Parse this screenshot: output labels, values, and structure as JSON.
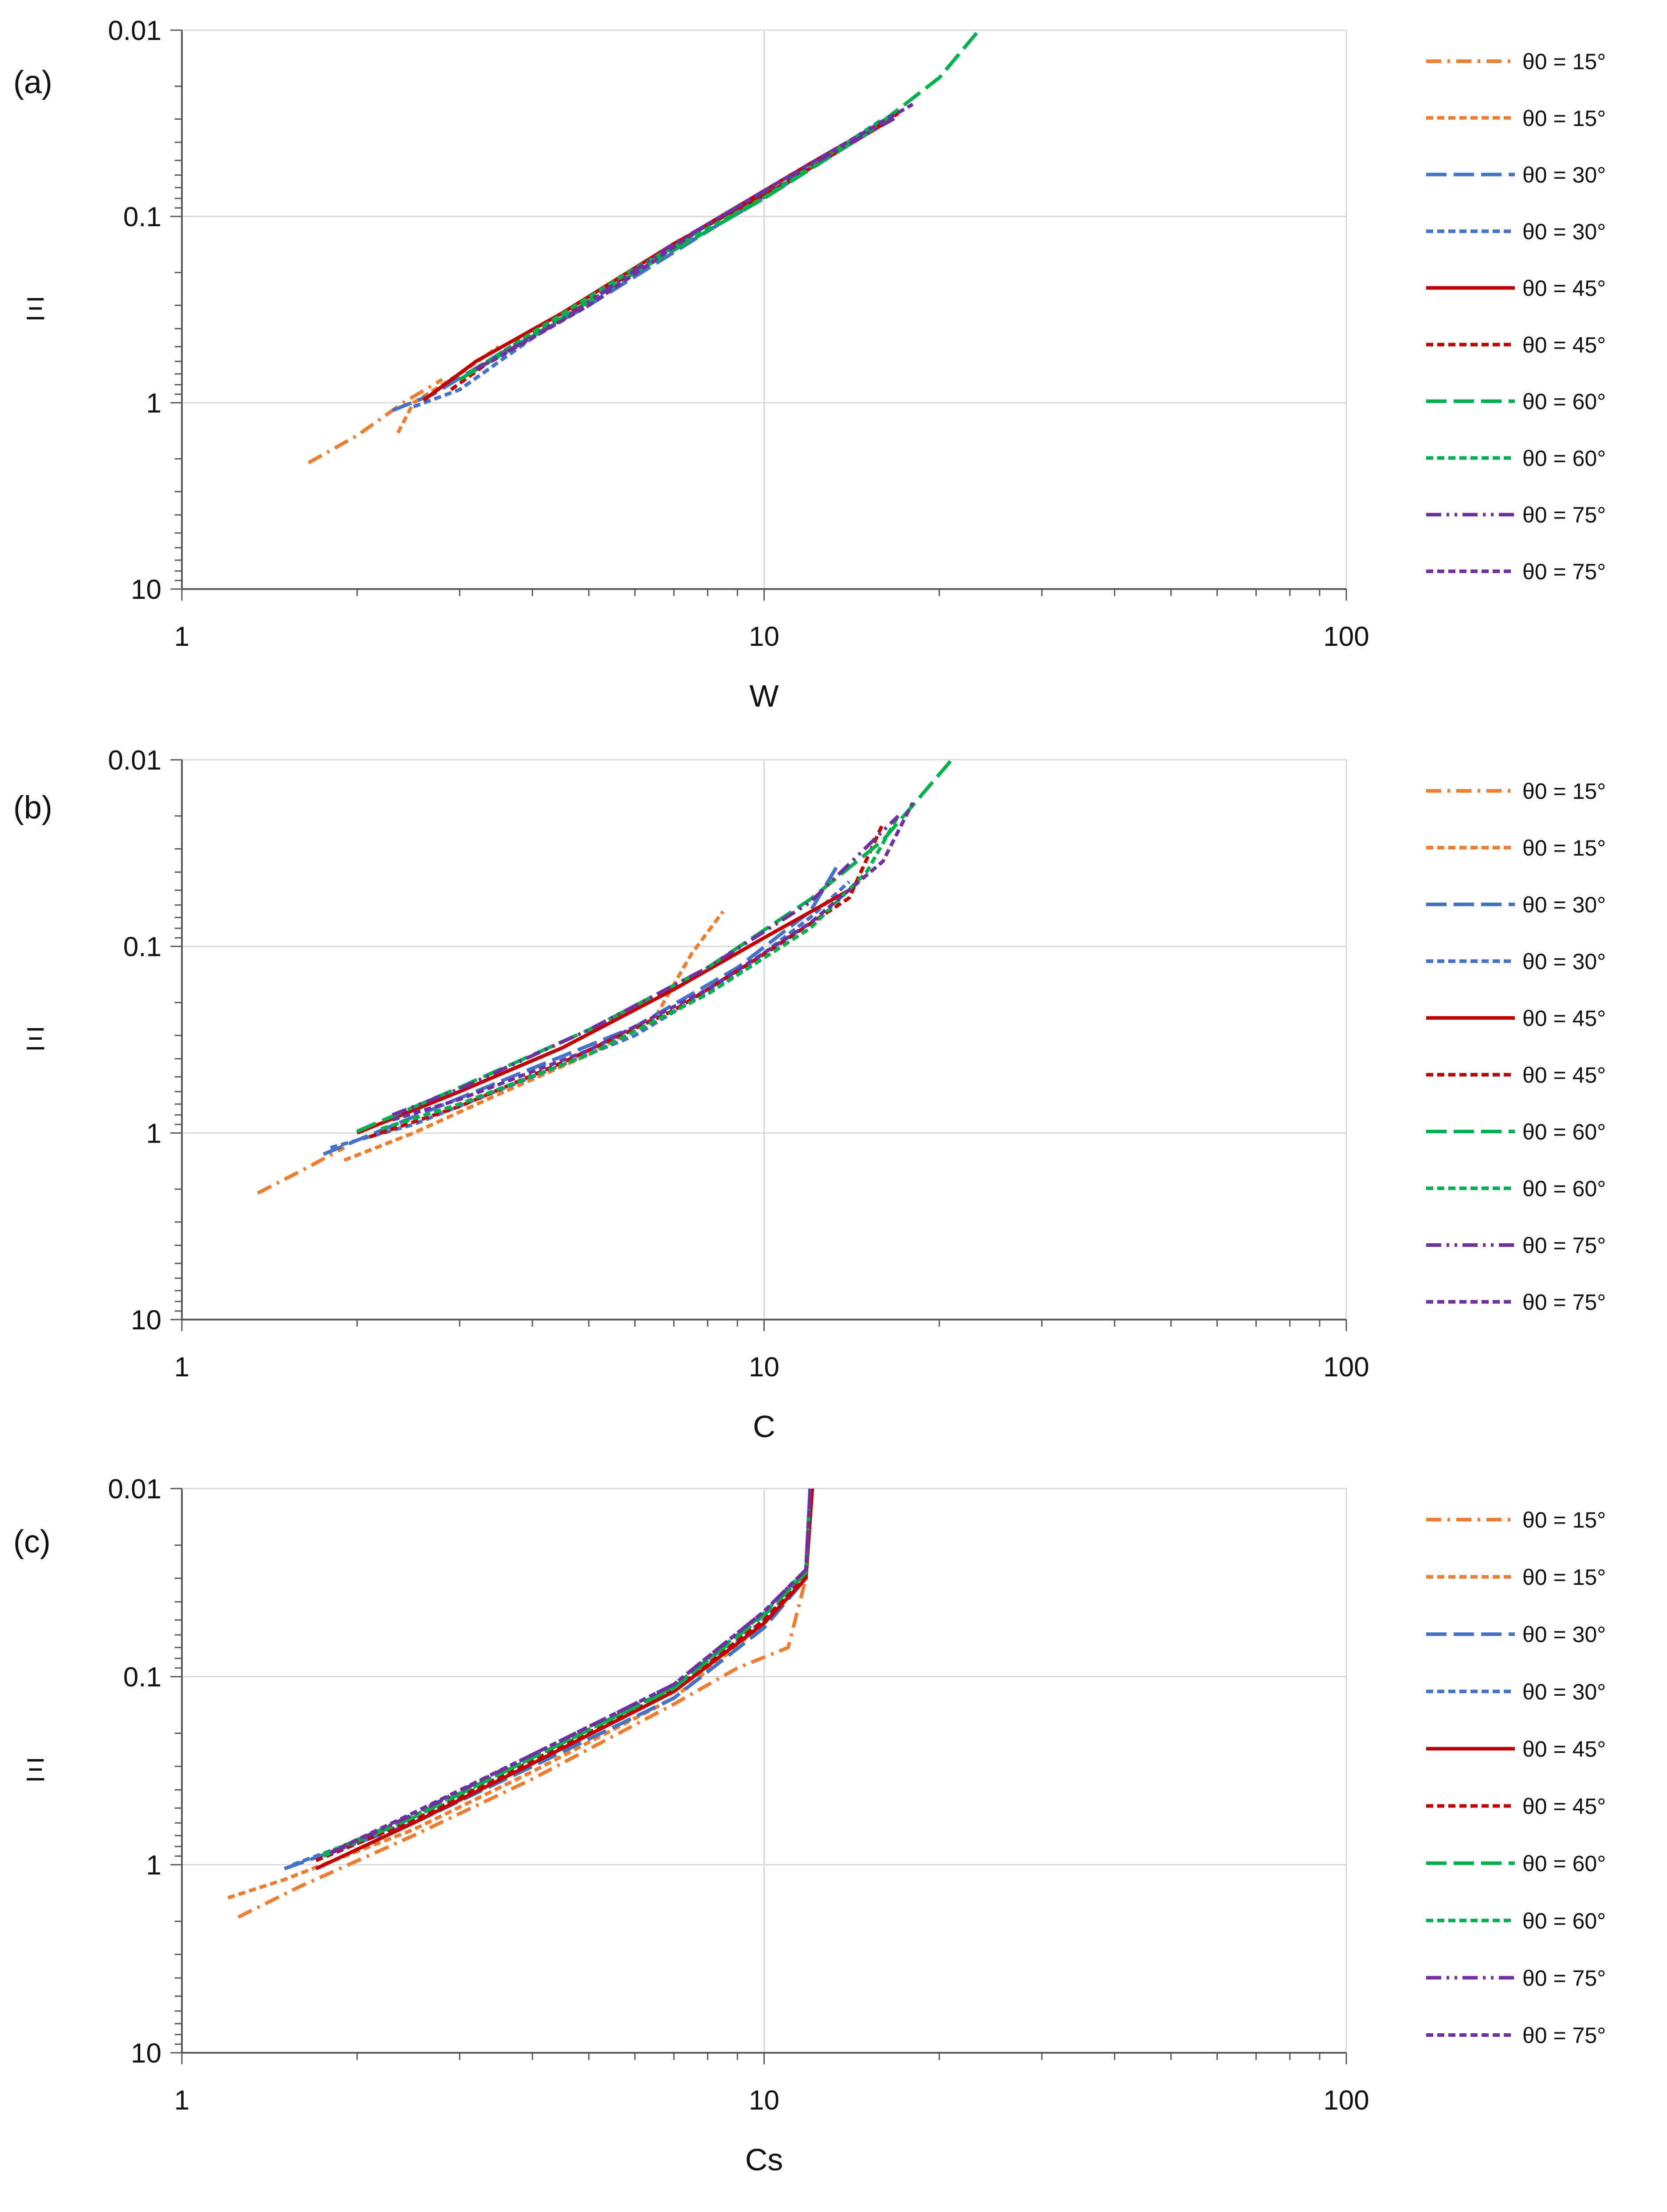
{
  "chart_data": [
    {
      "type": "line",
      "panel_label": "(a)",
      "xlabel": "W",
      "ylabel": "Ξ",
      "x_scale": "log",
      "y_scale": "log",
      "y_inverted": true,
      "xlim": [
        1,
        100
      ],
      "ylim": [
        0.01,
        10
      ],
      "x_tick_labels": [
        "1",
        "10",
        "100"
      ],
      "y_tick_labels": [
        "0.01",
        "0.1",
        "1",
        "10"
      ],
      "grid": true,
      "legend_position": "right",
      "series": [
        {
          "name": "θ0 = 15°",
          "color": "#ED7D31",
          "dash": "dashdot",
          "points": [
            [
              1.65,
              2.1
            ],
            [
              2.0,
              1.5
            ],
            [
              2.4,
              1.0
            ],
            [
              2.8,
              0.75
            ]
          ]
        },
        {
          "name": "θ0 = 15°",
          "color": "#ED7D31",
          "dash": "short",
          "points": [
            [
              2.35,
              1.45
            ],
            [
              2.5,
              1.0
            ],
            [
              3.0,
              0.7
            ],
            [
              3.5,
              0.5
            ]
          ]
        },
        {
          "name": "θ0 = 30°",
          "color": "#4472C4",
          "dash": "long",
          "points": [
            [
              2.3,
              1.1
            ],
            [
              2.7,
              0.9
            ],
            [
              3.5,
              0.55
            ],
            [
              5,
              0.3
            ],
            [
              8,
              0.12
            ],
            [
              12,
              0.055
            ],
            [
              17,
              0.027
            ]
          ]
        },
        {
          "name": "θ0 = 30°",
          "color": "#4472C4",
          "dash": "short",
          "points": [
            [
              2.5,
              1.05
            ],
            [
              3.0,
              0.85
            ],
            [
              4,
              0.45
            ],
            [
              6,
              0.2
            ],
            [
              10,
              0.08
            ],
            [
              15,
              0.035
            ]
          ]
        },
        {
          "name": "θ0 = 45°",
          "color": "#C00000",
          "dash": "solid",
          "points": [
            [
              2.6,
              0.97
            ],
            [
              3.2,
              0.6
            ],
            [
              4.5,
              0.33
            ],
            [
              7,
              0.14
            ],
            [
              11,
              0.065
            ],
            [
              16,
              0.032
            ]
          ]
        },
        {
          "name": "θ0 = 45°",
          "color": "#C00000",
          "dash": "short",
          "points": [
            [
              2.9,
              0.85
            ],
            [
              3.6,
              0.52
            ],
            [
              5,
              0.28
            ],
            [
              8,
              0.11
            ],
            [
              12,
              0.052
            ],
            [
              17,
              0.028
            ]
          ]
        },
        {
          "name": "θ0 = 60°",
          "color": "#00B050",
          "dash": "long",
          "points": [
            [
              3.0,
              0.75
            ],
            [
              4,
              0.44
            ],
            [
              6,
              0.2
            ],
            [
              10,
              0.08
            ],
            [
              15,
              0.036
            ],
            [
              20,
              0.018
            ],
            [
              23.4,
              0.01
            ]
          ]
        },
        {
          "name": "θ0 = 60°",
          "color": "#00B050",
          "dash": "short",
          "points": [
            [
              3.1,
              0.7
            ],
            [
              4,
              0.42
            ],
            [
              6,
              0.19
            ],
            [
              10,
              0.079
            ],
            [
              16,
              0.03
            ]
          ]
        },
        {
          "name": "θ0 = 75°",
          "color": "#7030A0",
          "dash": "dashdotdot",
          "points": [
            [
              3.2,
              0.66
            ],
            [
              4.5,
              0.36
            ],
            [
              7,
              0.14
            ],
            [
              11,
              0.062
            ],
            [
              17,
              0.029
            ]
          ]
        },
        {
          "name": "θ0 = 75°",
          "color": "#7030A0",
          "dash": "short",
          "points": [
            [
              3.4,
              0.6
            ],
            [
              5,
              0.3
            ],
            [
              8,
              0.11
            ],
            [
              12,
              0.052
            ],
            [
              18,
              0.025
            ]
          ]
        }
      ]
    },
    {
      "type": "line",
      "panel_label": "(b)",
      "xlabel": "C",
      "ylabel": "Ξ",
      "x_scale": "log",
      "y_scale": "log",
      "y_inverted": true,
      "xlim": [
        1,
        100
      ],
      "ylim": [
        0.01,
        10
      ],
      "x_tick_labels": [
        "1",
        "10",
        "100"
      ],
      "y_tick_labels": [
        "0.01",
        "0.1",
        "1",
        "10"
      ],
      "grid": true,
      "legend_position": "right",
      "series": [
        {
          "name": "θ0 = 15°",
          "color": "#ED7D31",
          "dash": "dashdot",
          "points": [
            [
              1.35,
              2.1
            ],
            [
              1.6,
              1.6
            ],
            [
              1.9,
              1.2
            ]
          ]
        },
        {
          "name": "θ0 = 15°",
          "color": "#ED7D31",
          "dash": "short",
          "points": [
            [
              1.9,
              1.4
            ],
            [
              2.5,
              1.0
            ],
            [
              3.5,
              0.62
            ],
            [
              5,
              0.38
            ],
            [
              6.5,
              0.24
            ],
            [
              7.5,
              0.11
            ],
            [
              8.5,
              0.065
            ]
          ]
        },
        {
          "name": "θ0 = 30°",
          "color": "#4472C4",
          "dash": "long",
          "points": [
            [
              1.75,
              1.3
            ],
            [
              2.5,
              0.82
            ],
            [
              4,
              0.45
            ],
            [
              6,
              0.27
            ],
            [
              9,
              0.13
            ],
            [
              12,
              0.065
            ],
            [
              13.5,
              0.035
            ]
          ]
        },
        {
          "name": "θ0 = 30°",
          "color": "#4472C4",
          "dash": "short",
          "points": [
            [
              1.8,
              1.2
            ],
            [
              2.5,
              0.9
            ],
            [
              4,
              0.5
            ],
            [
              6,
              0.3
            ],
            [
              9,
              0.14
            ],
            [
              12,
              0.07
            ],
            [
              14,
              0.045
            ]
          ]
        },
        {
          "name": "θ0 = 45°",
          "color": "#C00000",
          "dash": "solid",
          "points": [
            [
              2.0,
              1.0
            ],
            [
              3,
              0.6
            ],
            [
              4.5,
              0.35
            ],
            [
              7,
              0.17
            ],
            [
              10,
              0.09
            ],
            [
              14,
              0.05
            ]
          ]
        },
        {
          "name": "θ0 = 45°",
          "color": "#C00000",
          "dash": "short",
          "points": [
            [
              2.1,
              1.05
            ],
            [
              3,
              0.72
            ],
            [
              4.5,
              0.42
            ],
            [
              7,
              0.22
            ],
            [
              10,
              0.11
            ],
            [
              14,
              0.055
            ],
            [
              16,
              0.022
            ]
          ]
        },
        {
          "name": "θ0 = 60°",
          "color": "#00B050",
          "dash": "long",
          "points": [
            [
              2.0,
              0.98
            ],
            [
              3,
              0.57
            ],
            [
              5,
              0.28
            ],
            [
              8,
              0.13
            ],
            [
              12,
              0.056
            ],
            [
              16,
              0.027
            ],
            [
              21,
              0.01
            ]
          ]
        },
        {
          "name": "θ0 = 60°",
          "color": "#00B050",
          "dash": "short",
          "points": [
            [
              2.2,
              0.95
            ],
            [
              3,
              0.7
            ],
            [
              5,
              0.38
            ],
            [
              8,
              0.18
            ],
            [
              12,
              0.08
            ],
            [
              15,
              0.04
            ],
            [
              17,
              0.02
            ]
          ]
        },
        {
          "name": "θ0 = 75°",
          "color": "#7030A0",
          "dash": "dashdotdot",
          "points": [
            [
              2.3,
              0.8
            ],
            [
              3,
              0.58
            ],
            [
              5,
              0.28
            ],
            [
              8,
              0.13
            ],
            [
              12,
              0.058
            ],
            [
              17,
              0.02
            ]
          ]
        },
        {
          "name": "θ0 = 75°",
          "color": "#7030A0",
          "dash": "short",
          "points": [
            [
              2.3,
              0.85
            ],
            [
              3,
              0.66
            ],
            [
              5,
              0.36
            ],
            [
              8,
              0.17
            ],
            [
              12,
              0.075
            ],
            [
              16,
              0.035
            ],
            [
              18,
              0.017
            ]
          ]
        }
      ]
    },
    {
      "type": "line",
      "panel_label": "(c)",
      "xlabel": "Cs",
      "ylabel": "Ξ",
      "x_scale": "log",
      "y_scale": "log",
      "y_inverted": true,
      "xlim": [
        1,
        100
      ],
      "ylim": [
        0.01,
        10
      ],
      "x_tick_labels": [
        "1",
        "10",
        "100"
      ],
      "y_tick_labels": [
        "0.01",
        "0.1",
        "1",
        "10"
      ],
      "grid": true,
      "legend_position": "right",
      "series": [
        {
          "name": "θ0 = 15°",
          "color": "#ED7D31",
          "dash": "dashdot",
          "points": [
            [
              1.25,
              1.9
            ],
            [
              1.6,
              1.3
            ],
            [
              2.5,
              0.7
            ],
            [
              4,
              0.35
            ],
            [
              7,
              0.14
            ],
            [
              9,
              0.09
            ],
            [
              11,
              0.07
            ],
            [
              11.8,
              0.03
            ],
            [
              12.0,
              0.01
            ]
          ]
        },
        {
          "name": "θ0 = 15°",
          "color": "#ED7D31",
          "dash": "short",
          "points": [
            [
              1.2,
              1.5
            ],
            [
              1.5,
              1.2
            ],
            [
              2.5,
              0.65
            ],
            [
              4,
              0.32
            ],
            [
              7,
              0.13
            ],
            [
              10,
              0.052
            ],
            [
              11.8,
              0.03
            ],
            [
              12.0,
              0.01
            ]
          ]
        },
        {
          "name": "θ0 = 30°",
          "color": "#4472C4",
          "dash": "long",
          "points": [
            [
              1.5,
              1.05
            ],
            [
              2.5,
              0.6
            ],
            [
              4,
              0.3
            ],
            [
              7,
              0.13
            ],
            [
              10,
              0.055
            ],
            [
              11.8,
              0.03
            ],
            [
              12.0,
              0.01
            ]
          ]
        },
        {
          "name": "θ0 = 30°",
          "color": "#4472C4",
          "dash": "short",
          "points": [
            [
              1.55,
              1.0
            ],
            [
              2.5,
              0.58
            ],
            [
              4,
              0.29
            ],
            [
              7,
              0.12
            ],
            [
              10,
              0.05
            ],
            [
              11.8,
              0.028
            ],
            [
              12.0,
              0.01
            ]
          ]
        },
        {
          "name": "θ0 = 45°",
          "color": "#C00000",
          "dash": "solid",
          "points": [
            [
              1.7,
              1.05
            ],
            [
              2.5,
              0.6
            ],
            [
              4,
              0.29
            ],
            [
              7,
              0.12
            ],
            [
              10,
              0.052
            ],
            [
              11.8,
              0.03
            ],
            [
              12.1,
              0.01
            ]
          ]
        },
        {
          "name": "θ0 = 45°",
          "color": "#C00000",
          "dash": "short",
          "points": [
            [
              1.7,
              0.95
            ],
            [
              2.5,
              0.58
            ],
            [
              4,
              0.28
            ],
            [
              7,
              0.118
            ],
            [
              10,
              0.05
            ],
            [
              11.8,
              0.029
            ],
            [
              12.1,
              0.01
            ]
          ]
        },
        {
          "name": "θ0 = 60°",
          "color": "#00B050",
          "dash": "long",
          "points": [
            [
              1.75,
              0.9
            ],
            [
              2.5,
              0.56
            ],
            [
              4,
              0.27
            ],
            [
              7,
              0.115
            ],
            [
              10,
              0.047
            ],
            [
              11.8,
              0.028
            ],
            [
              12.0,
              0.01
            ]
          ]
        },
        {
          "name": "θ0 = 60°",
          "color": "#00B050",
          "dash": "short",
          "points": [
            [
              1.75,
              0.88
            ],
            [
              2.5,
              0.55
            ],
            [
              4,
              0.27
            ],
            [
              7,
              0.113
            ],
            [
              10,
              0.046
            ],
            [
              11.8,
              0.027
            ],
            [
              12.0,
              0.01
            ]
          ]
        },
        {
          "name": "θ0 = 75°",
          "color": "#7030A0",
          "dash": "dashdotdot",
          "points": [
            [
              1.8,
              0.87
            ],
            [
              2.5,
              0.54
            ],
            [
              4,
              0.26
            ],
            [
              7,
              0.11
            ],
            [
              10,
              0.045
            ],
            [
              11.8,
              0.027
            ],
            [
              12.0,
              0.01
            ]
          ]
        },
        {
          "name": "θ0 = 75°",
          "color": "#7030A0",
          "dash": "short",
          "points": [
            [
              1.8,
              0.86
            ],
            [
              2.5,
              0.53
            ],
            [
              4,
              0.26
            ],
            [
              7,
              0.11
            ],
            [
              10,
              0.045
            ],
            [
              11.8,
              0.027
            ],
            [
              12.0,
              0.01
            ]
          ]
        }
      ]
    }
  ]
}
